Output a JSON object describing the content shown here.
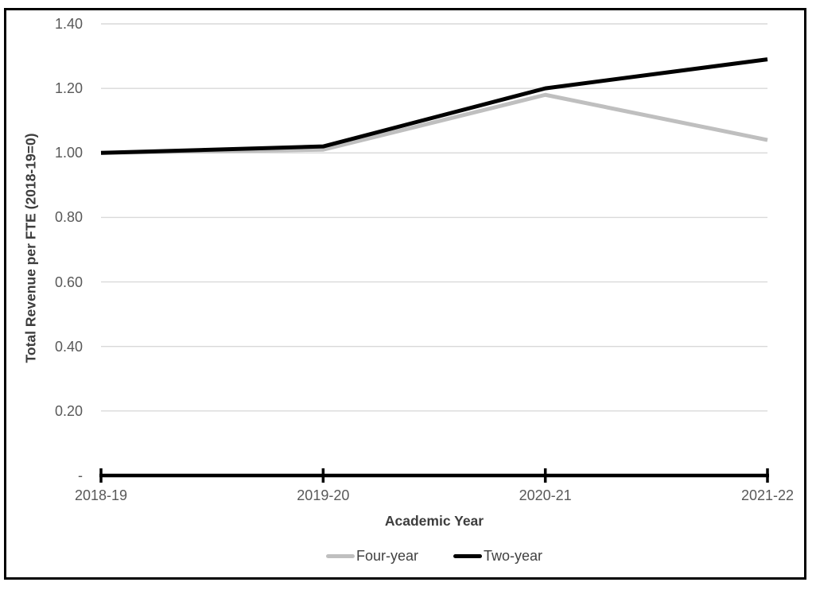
{
  "chart_data": {
    "type": "line",
    "categories": [
      "2018-19",
      "2019-20",
      "2020-21",
      "2021-22"
    ],
    "series": [
      {
        "name": "Four-year",
        "color": "#BFBFBF",
        "values": [
          1.0,
          1.01,
          1.18,
          1.04
        ]
      },
      {
        "name": "Two-year",
        "color": "#000000",
        "values": [
          1.0,
          1.02,
          1.2,
          1.29
        ]
      }
    ],
    "xlabel": "Academic Year",
    "ylabel": "Total Revenue per FTE (2018-19=0)",
    "ylim": [
      0,
      1.4
    ],
    "yticks": [
      {
        "label": "-",
        "value": 0
      },
      {
        "label": "0.20",
        "value": 0.2
      },
      {
        "label": "0.40",
        "value": 0.4
      },
      {
        "label": "0.60",
        "value": 0.6
      },
      {
        "label": "0.80",
        "value": 0.8
      },
      {
        "label": "1.00",
        "value": 1.0
      },
      {
        "label": "1.20",
        "value": 1.2
      },
      {
        "label": "1.40",
        "value": 1.4
      }
    ],
    "grid": true,
    "legend_position": "bottom",
    "colors": {
      "gridline": "#D9D9D9",
      "axis": "#000000",
      "tick_label": "#595959",
      "axis_title": "#3D3D3D",
      "legend_text": "#404040",
      "frame_border": "#000000",
      "background": "#FFFFFF"
    }
  }
}
